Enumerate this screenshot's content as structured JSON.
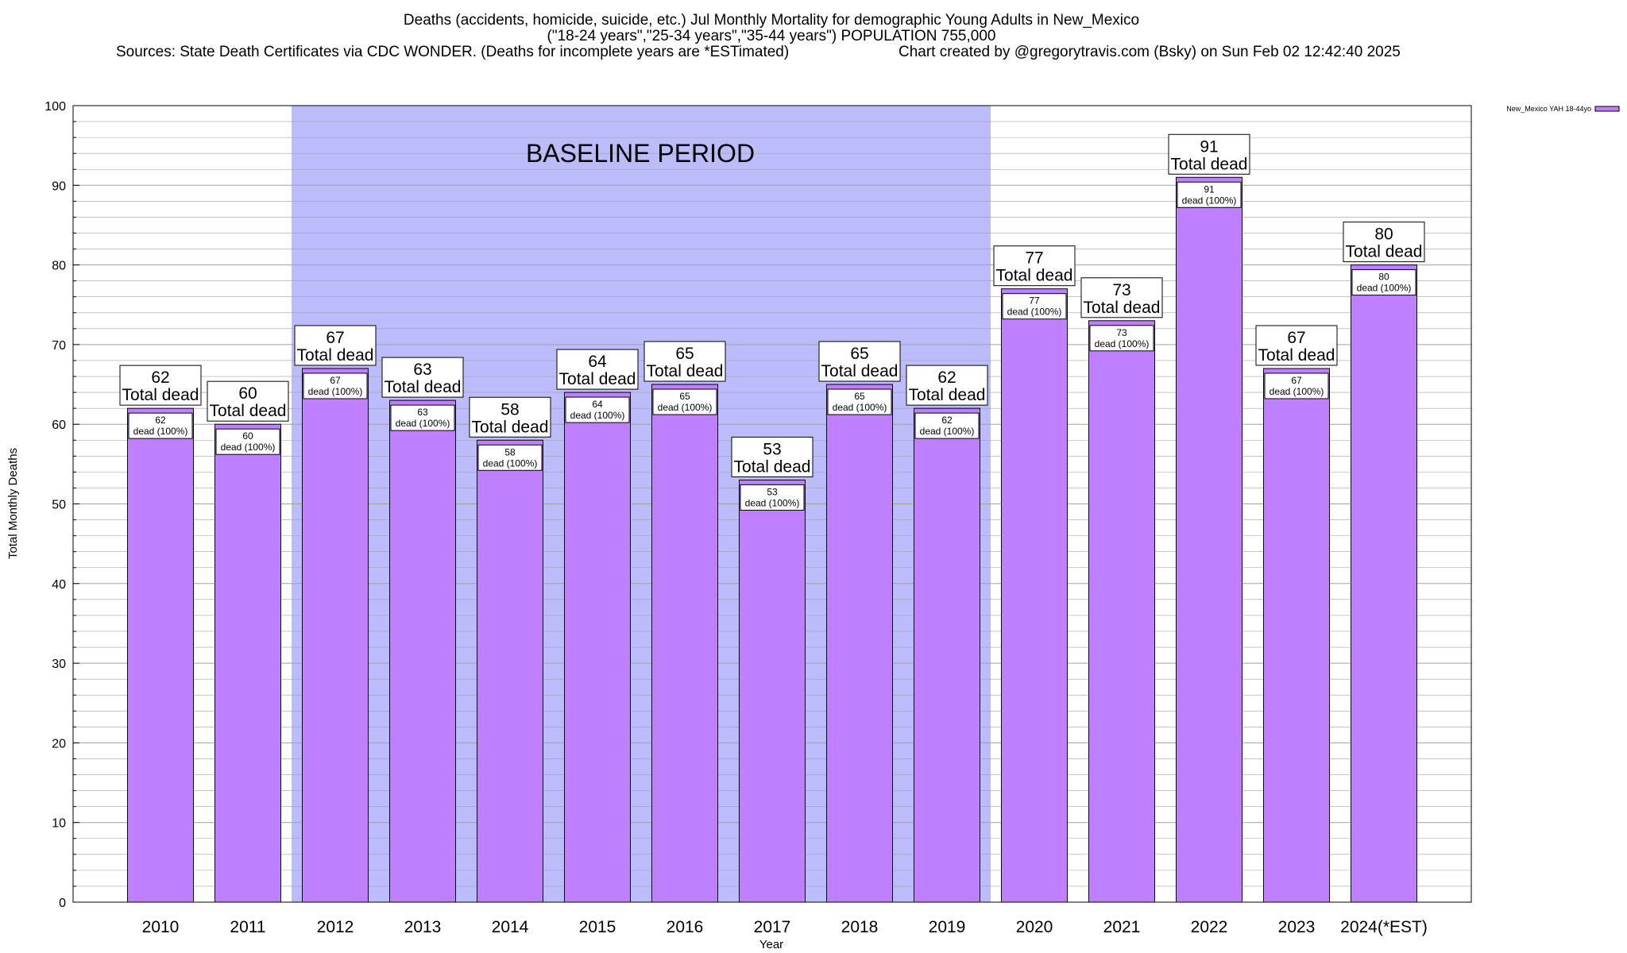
{
  "header": {
    "title_line1": "Deaths (accidents, homicide, suicide, etc.) Jul Monthly Mortality for demographic Young Adults in New_Mexico",
    "title_line2": "(\"18-24 years\",\"25-34 years\",\"35-44 years\") POPULATION 755,000",
    "sources": "Sources: State Death Certificates via CDC WONDER. (Deaths for incomplete years are *ESTimated)",
    "credit": "Chart created by @gregorytravis.com (Bsky) on Sun Feb 02 12:42:40 2025"
  },
  "annotations": {
    "baseline_label": "BASELINE PERIOD",
    "baseline_start": "2012",
    "baseline_end": "2019",
    "total_suffix": "Total dead",
    "inner_suffix": "dead (100%)"
  },
  "colors": {
    "bar_fill": "#bf80ff",
    "baseline_fill": "#bcbcfc",
    "grid": "#a0a0a0"
  },
  "chart_data": {
    "type": "bar",
    "categories": [
      "2010",
      "2011",
      "2012",
      "2013",
      "2014",
      "2015",
      "2016",
      "2017",
      "2018",
      "2019",
      "2020",
      "2021",
      "2022",
      "2023",
      "2024(*EST)"
    ],
    "series": [
      {
        "name": "New_Mexico YAH 18-44yo",
        "values": [
          62,
          60,
          67,
          63,
          58,
          64,
          65,
          53,
          65,
          62,
          77,
          73,
          91,
          67,
          80
        ]
      }
    ],
    "xlabel": "Year",
    "ylabel": "Total Monthly Deaths",
    "ylim": [
      0,
      100
    ],
    "yticks": [
      0,
      10,
      20,
      30,
      40,
      50,
      60,
      70,
      80,
      90,
      100
    ],
    "grid": true,
    "legend_position": "top-right, outside plot"
  }
}
